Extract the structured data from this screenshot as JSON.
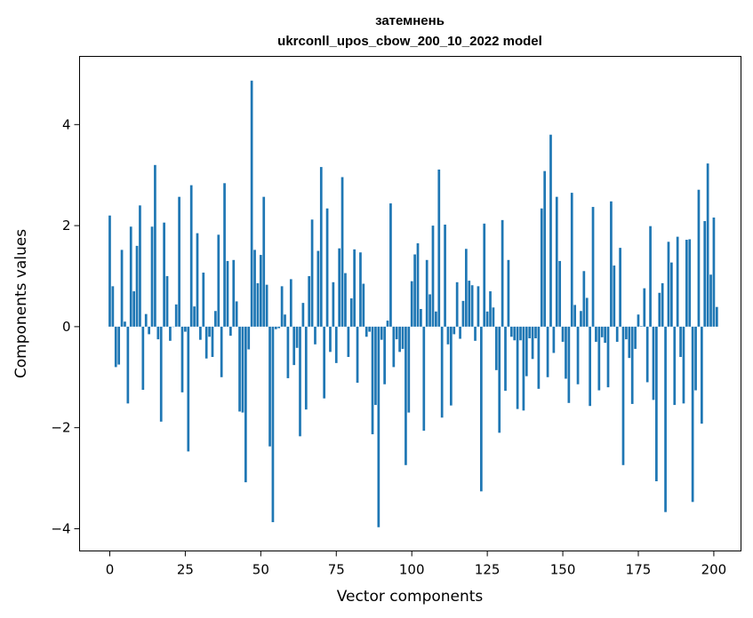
{
  "chart_data": {
    "type": "bar",
    "title": "затемнень",
    "subtitle": "ukrconll_upos_cbow_200_10_2022 model",
    "xlabel": "Vector components",
    "ylabel": "Components values",
    "xlim": [
      -10,
      209
    ],
    "ylim": [
      -4.44,
      5.35
    ],
    "xticks": [
      0,
      25,
      50,
      75,
      100,
      125,
      150,
      175,
      200
    ],
    "yticks": [
      -4,
      -2,
      0,
      2,
      4
    ],
    "yticklabels": [
      "−4",
      "−2",
      "0",
      "2",
      "4"
    ],
    "grid": false,
    "color": "#1f77b4",
    "values": [
      2.2,
      0.8,
      -0.8,
      -0.75,
      1.52,
      0.1,
      -1.52,
      1.98,
      0.7,
      1.6,
      2.4,
      -1.25,
      0.25,
      -0.15,
      1.98,
      3.2,
      -0.25,
      -1.88,
      2.06,
      1.0,
      -0.28,
      0.0,
      0.44,
      2.57,
      -1.3,
      -0.1,
      -2.47,
      2.8,
      0.4,
      1.85,
      -0.26,
      1.07,
      -0.63,
      -0.2,
      -0.6,
      0.31,
      1.82,
      -1.0,
      2.84,
      1.3,
      -0.18,
      1.32,
      0.5,
      -1.68,
      -1.7,
      -3.08,
      -0.45,
      4.87,
      1.52,
      0.86,
      1.42,
      2.57,
      0.83,
      -2.37,
      -3.87,
      -0.05,
      -0.03,
      0.8,
      0.24,
      -1.02,
      0.94,
      -0.76,
      -0.42,
      -2.17,
      0.47,
      -1.64,
      1.0,
      2.12,
      -0.35,
      1.5,
      3.16,
      -1.42,
      2.34,
      -0.5,
      0.88,
      -0.72,
      1.55,
      2.96,
      1.06,
      -0.6,
      0.56,
      1.53,
      -1.11,
      1.47,
      0.85,
      -0.2,
      -0.1,
      -2.13,
      -1.55,
      -3.97,
      -0.26,
      -1.14,
      0.12,
      2.44,
      -0.8,
      -0.25,
      -0.5,
      -0.44,
      -2.74,
      -1.7,
      0.9,
      1.43,
      1.65,
      0.35,
      -2.06,
      1.32,
      0.64,
      2.0,
      0.3,
      3.11,
      -1.8,
      2.02,
      -0.35,
      -1.56,
      -0.15,
      0.88,
      -0.24,
      0.51,
      1.54,
      0.91,
      0.82,
      -0.28,
      0.8,
      -3.26,
      2.04,
      0.3,
      0.7,
      0.38,
      -0.86,
      -2.1,
      2.11,
      -1.27,
      1.32,
      -0.2,
      -0.27,
      -1.63,
      -0.27,
      -1.66,
      -0.98,
      -0.23,
      -0.64,
      -0.23,
      -1.23,
      2.34,
      3.08,
      -1.0,
      3.8,
      -0.52,
      2.57,
      1.3,
      -0.3,
      -1.03,
      -1.51,
      2.65,
      0.43,
      -1.14,
      0.31,
      1.1,
      0.57,
      -1.57,
      2.37,
      -0.3,
      -1.26,
      -0.21,
      -0.32,
      -1.2,
      2.48,
      1.21,
      -0.3,
      1.56,
      -2.74,
      -0.25,
      -0.62,
      -1.53,
      -0.44,
      0.24,
      0.01,
      0.76,
      -1.1,
      1.99,
      -1.45,
      -3.06,
      0.67,
      0.86,
      -3.67,
      1.68,
      1.27,
      -1.55,
      1.78,
      -0.6,
      -1.52,
      1.72,
      1.73,
      -3.47,
      -1.26,
      2.71,
      -1.92,
      2.09,
      3.23,
      1.03,
      2.16,
      0.39
    ]
  }
}
